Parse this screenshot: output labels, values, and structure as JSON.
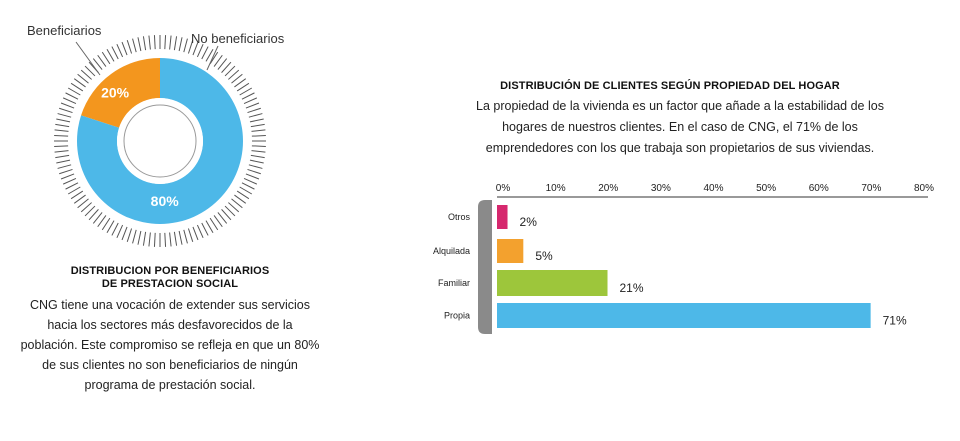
{
  "left": {
    "label_beneficiarios": "Beneficiarios",
    "label_no_beneficiarios": "No beneficiarios",
    "title_line1": "DISTRIBUCION POR BENEFICIARIOS",
    "title_line2": "DE PRESTACION SOCIAL",
    "description": "CNG tiene una vocación de extender sus servicios hacia los sectores más desfavorecidos de la población. Este compromiso se refleja en que un 80% de sus clientes no son beneficiarios de ningún programa de prestación social."
  },
  "right": {
    "title": "DISTRIBUCIÓN DE CLIENTES SEGÚN PROPIEDAD DEL HOGAR",
    "description": "La propiedad de la vivienda es un factor que añade a la estabilidad de los hogares de nuestros clientes. En el caso de CNG, el 71% de los emprendedores con los que trabaja son propietarios de sus viviendas."
  },
  "colors": {
    "beneficiarios": "#f3961e",
    "no_beneficiarios": "#4db8e8",
    "otros": "#d6286e",
    "alquilada": "#f3a12e",
    "familiar": "#9dc63b",
    "propia": "#4db8e8",
    "bracket": "#8a8a8a",
    "ticks": "#555555"
  },
  "chart_data": [
    {
      "type": "pie",
      "style": "donut",
      "categories": [
        "Beneficiarios",
        "No beneficiarios"
      ],
      "values": [
        20,
        80
      ],
      "value_labels": [
        "20%",
        "80%"
      ],
      "title": "DISTRIBUCION POR BENEFICIARIOS DE PRESTACION SOCIAL"
    },
    {
      "type": "bar",
      "orientation": "horizontal",
      "categories": [
        "Otros",
        "Alquilada",
        "Familiar",
        "Propia"
      ],
      "values": [
        2,
        5,
        21,
        71
      ],
      "value_labels": [
        "2%",
        "5%",
        "21%",
        "71%"
      ],
      "x_ticks": [
        "0%",
        "10%",
        "20%",
        "30%",
        "40%",
        "50%",
        "60%",
        "70%",
        "80%"
      ],
      "xlim": [
        0,
        80
      ],
      "title": "DISTRIBUCIÓN DE CLIENTES SEGÚN PROPIEDAD DEL HOGAR",
      "legend": "none",
      "grid": false
    }
  ]
}
